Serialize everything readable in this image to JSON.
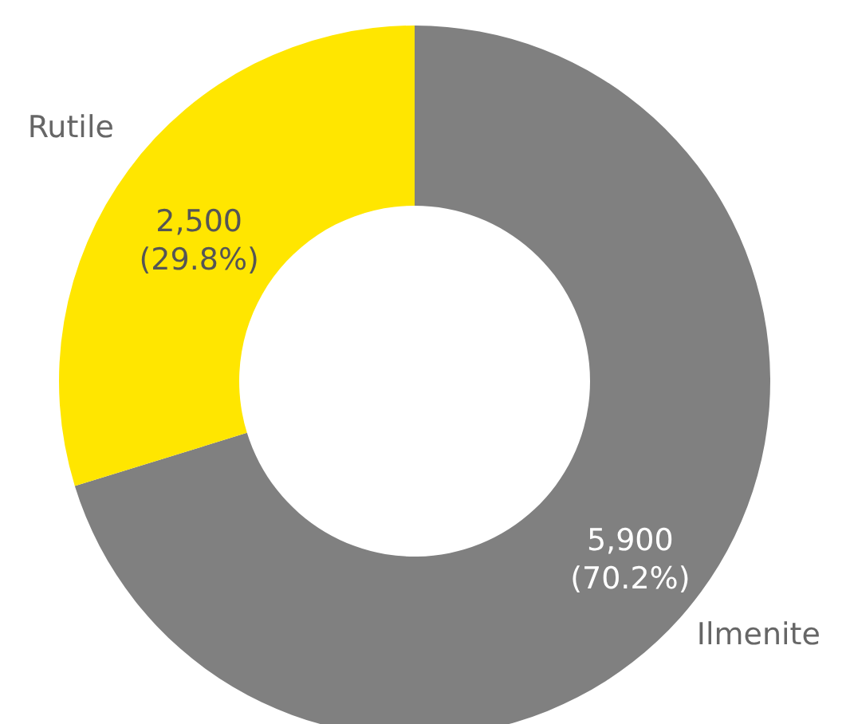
{
  "chart_data": {
    "type": "donut",
    "categories": [
      "Ilmenite",
      "Rutile"
    ],
    "values": [
      5900,
      2500
    ],
    "colors": [
      "#808080",
      "#ffe600"
    ],
    "value_labels": [
      "5,900\n(70.2%)",
      "2,500\n(29.8%)"
    ]
  }
}
